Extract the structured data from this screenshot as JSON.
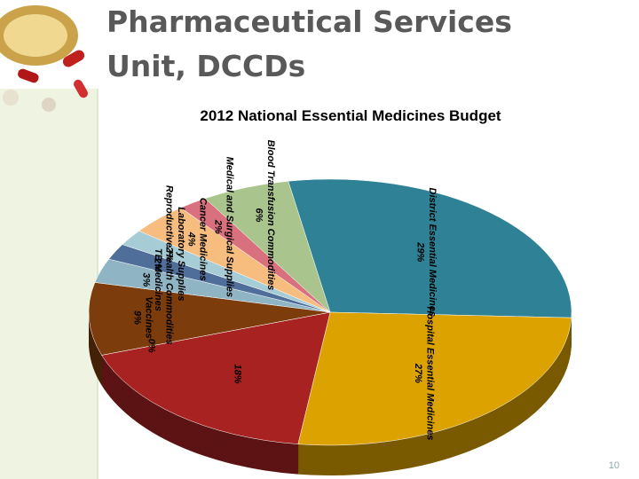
{
  "header": {
    "title_lines": [
      "Pharmaceutical Services",
      "Unit, DCCDs"
    ]
  },
  "chart_data": {
    "type": "pie",
    "title": "2012 National Essential Medicines Budget",
    "categories": [
      "District Essential Medicines",
      "Hospital Essential Medicines",
      null,
      null,
      "Vaccines",
      "TB Medicines",
      "Reproductive Health Commodities",
      "Laboratory Supplies",
      "Cancer Medicines",
      "Medical and Surgical Supplies",
      "Blood Transfusion Commodities"
    ],
    "values": [
      29,
      27,
      18,
      0,
      9,
      3,
      2,
      2,
      4,
      2,
      6
    ],
    "value_labels": [
      "29%",
      "27%",
      "18%",
      "0%",
      "9%",
      "3%",
      "2%",
      "2%",
      "4%",
      "2%",
      "6%"
    ],
    "colors": [
      "#2f8196",
      "#dca300",
      "#a82222",
      "#3c5a24",
      "#7c3c0c",
      "#8fb4c4",
      "#4f6f9a",
      "#a6ccd6",
      "#f6bd7e",
      "#d9707e",
      "#a9c48c",
      "#b98a7c"
    ]
  },
  "footer": {
    "page_number": "10"
  }
}
